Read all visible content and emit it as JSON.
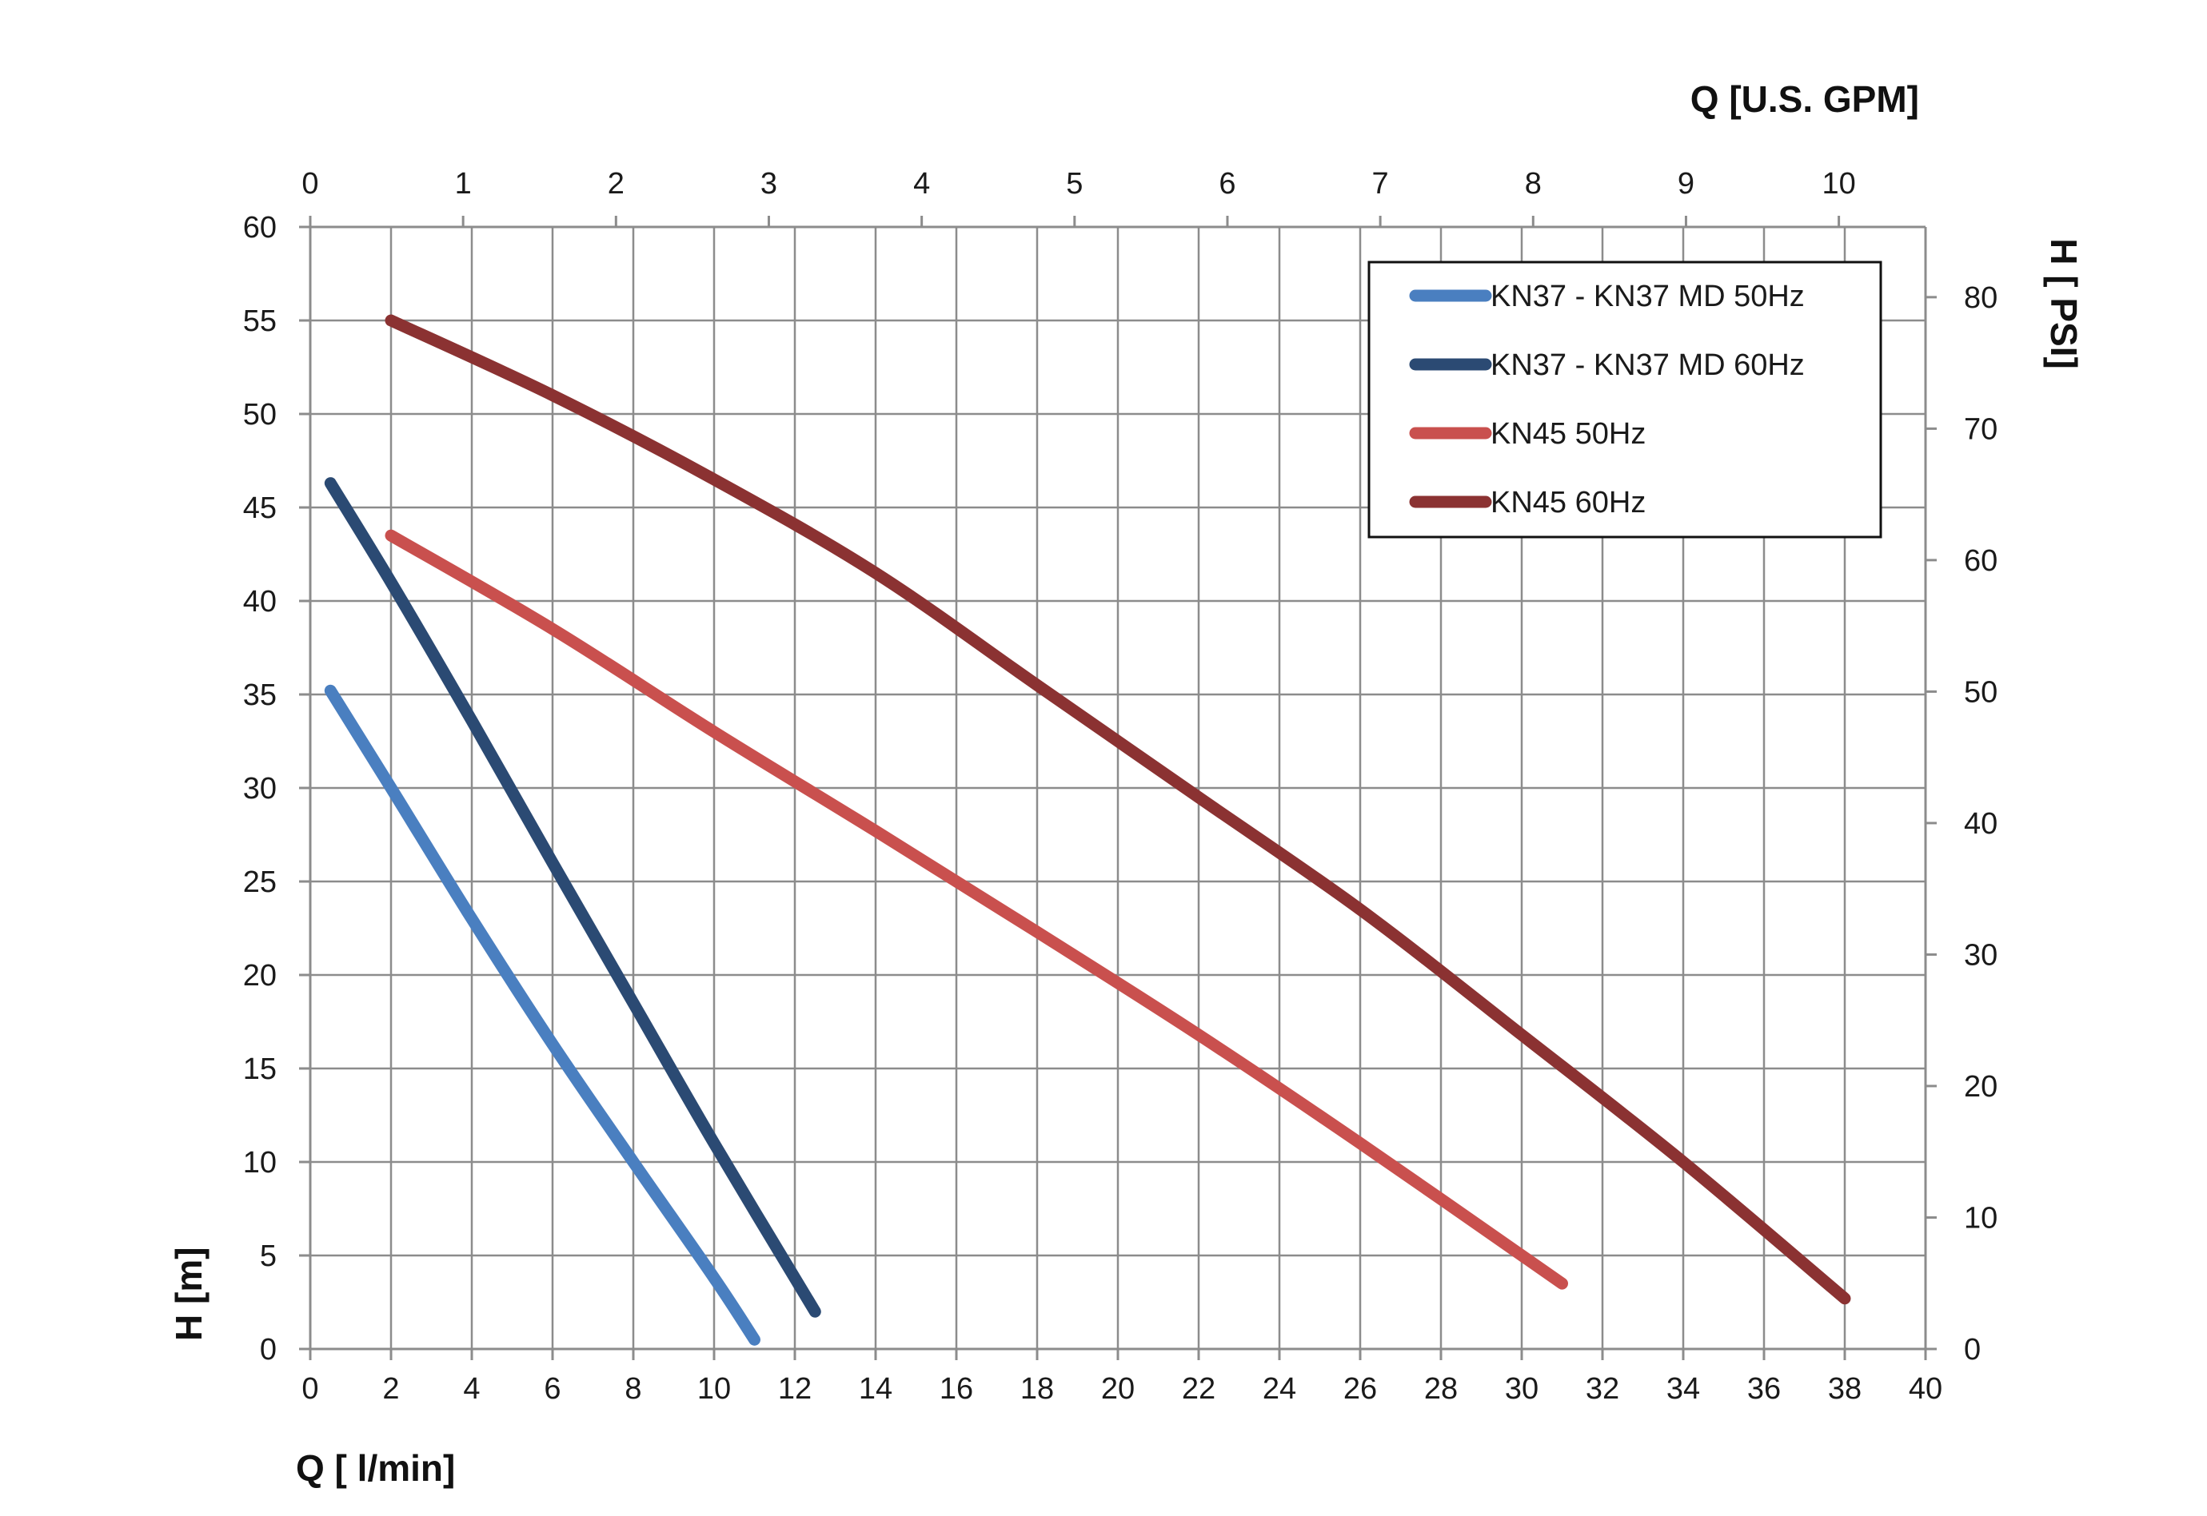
{
  "chart_data": {
    "type": "line",
    "x_axis_bottom": {
      "label": "Q [ l/min]",
      "range": [
        0,
        40
      ],
      "ticks": [
        0,
        2,
        4,
        6,
        8,
        10,
        12,
        14,
        16,
        18,
        20,
        22,
        24,
        26,
        28,
        30,
        32,
        34,
        36,
        38,
        40
      ]
    },
    "x_axis_top": {
      "label": "Q  [U.S. GPM]",
      "range": [
        0,
        10.567
      ],
      "ticks": [
        0,
        1,
        2,
        3,
        4,
        5,
        6,
        7,
        8,
        9,
        10
      ]
    },
    "y_axis_left": {
      "label": "H [m]",
      "range": [
        0,
        60
      ],
      "ticks": [
        0,
        5,
        10,
        15,
        20,
        25,
        30,
        35,
        40,
        45,
        50,
        55,
        60
      ]
    },
    "y_axis_right": {
      "label": "H [ PSI]",
      "range": [
        0,
        85.34
      ],
      "ticks": [
        0,
        10,
        20,
        30,
        40,
        50,
        60,
        70,
        80
      ]
    },
    "grid": true,
    "legend_position": "top-right",
    "series": [
      {
        "name": "KN37 - KN37 MD 50Hz",
        "color": "#4a7fc0",
        "x": [
          0.5,
          2,
          4,
          6,
          8,
          10,
          11
        ],
        "y": [
          35.2,
          30,
          23,
          16.3,
          10,
          3.8,
          0.5
        ]
      },
      {
        "name": "KN37 - KN37 MD 60Hz",
        "color": "#2b4a73",
        "x": [
          0.5,
          2,
          4,
          6,
          8,
          10,
          12.5
        ],
        "y": [
          46.3,
          41,
          33.6,
          26,
          18.5,
          11,
          2
        ]
      },
      {
        "name": "KN45 50Hz",
        "color": "#c9504e",
        "x": [
          2,
          6,
          10,
          14,
          18,
          22,
          26,
          31
        ],
        "y": [
          43.5,
          38.5,
          33,
          27.7,
          22.3,
          16.8,
          11,
          3.5
        ]
      },
      {
        "name": "KN45 60Hz",
        "color": "#8b3232",
        "x": [
          2,
          6,
          10,
          14,
          18,
          22,
          26,
          30,
          34,
          38
        ],
        "y": [
          55,
          51,
          46.5,
          41.5,
          35.5,
          29.5,
          23.5,
          16.8,
          10,
          2.7
        ]
      }
    ]
  }
}
